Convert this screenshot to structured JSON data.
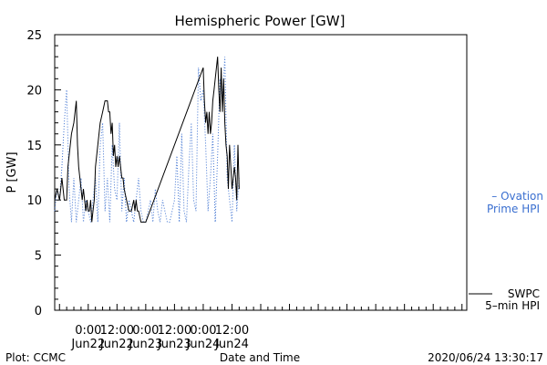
{
  "chart_data": {
    "type": "line",
    "title": "Hemispheric Power [GW]",
    "xlabel": "Date and Time",
    "ylabel": "P [GW]",
    "ylim": [
      0,
      25
    ],
    "xlim": [
      -14,
      158
    ],
    "x_unit": "hours from 2020/06/22 00:00 UT",
    "y_ticks": [
      0,
      5,
      10,
      15,
      20,
      25
    ],
    "x_tick_labels": [
      {
        "x": 0,
        "time": "0:00",
        "date": "Jun22"
      },
      {
        "x": 12,
        "time": "12:00",
        "date": "Jun22"
      },
      {
        "x": 24,
        "time": "0:00",
        "date": "Jun23"
      },
      {
        "x": 36,
        "time": "12:00",
        "date": "Jun23"
      },
      {
        "x": 48,
        "time": "0:00",
        "date": "Jun24"
      },
      {
        "x": 60,
        "time": "12:00",
        "date": "Jun24"
      }
    ],
    "grid": false,
    "legend": {
      "placement": "right",
      "entries": [
        {
          "series": "Ovation",
          "line1": "– Ovation",
          "line2": "Prime HPI",
          "color": "#3a6fd0"
        },
        {
          "series": "SWPC",
          "line1": "SWPC",
          "line2": "5–min HPI",
          "color": "#000000"
        }
      ]
    },
    "series": [
      {
        "name": "SWPC",
        "color": "#000000",
        "style": "solid",
        "x": [
          -14,
          -13,
          -12,
          -11.5,
          -11,
          -10.5,
          -10,
          -9,
          -8.5,
          -7,
          -6,
          -5,
          -4.5,
          -4,
          -3.5,
          -3,
          -2.5,
          -2,
          -1.5,
          -1,
          -0.5,
          0,
          0.5,
          1,
          1.5,
          2,
          2.5,
          3,
          4,
          5,
          6,
          7,
          8,
          8.5,
          9,
          9.5,
          10,
          10.5,
          11,
          11.5,
          12,
          12.5,
          13,
          13.5,
          14,
          14.5,
          15,
          16,
          17,
          18,
          19,
          19.5,
          20,
          20.5,
          21,
          22,
          23,
          24,
          48,
          48.5,
          49,
          49.5,
          50,
          50.5,
          51,
          51.5,
          52,
          52.5,
          53,
          53.5,
          54,
          54.5,
          55,
          55.5,
          56,
          56.5,
          57,
          57.5,
          58,
          58.5,
          59,
          59.5,
          60,
          60.5,
          61,
          61.5,
          62,
          62.5,
          63
        ],
        "y": [
          10,
          11,
          10,
          11,
          12,
          11,
          10,
          10,
          13,
          16,
          17,
          19,
          15,
          13,
          12,
          11,
          10,
          11,
          10,
          9,
          10,
          9,
          9,
          10,
          8,
          9,
          10,
          13,
          15,
          17,
          18,
          19,
          19,
          18,
          18,
          16,
          17,
          14,
          15,
          13,
          14,
          13,
          14,
          13,
          12,
          12,
          11,
          10,
          9,
          9,
          10,
          9,
          10,
          9,
          9,
          8,
          8,
          8,
          22,
          19,
          17,
          18,
          16,
          18,
          16,
          17,
          19,
          20,
          21,
          22,
          23,
          20,
          18,
          22,
          18,
          21,
          17,
          15,
          14,
          11,
          15,
          13,
          11,
          12,
          13,
          12,
          10,
          15,
          11
        ]
      },
      {
        "name": "Ovation",
        "color": "#3a6fd0",
        "style": "dotted",
        "x": [
          -14,
          -13,
          -12,
          -11,
          -10,
          -9,
          -8,
          -7,
          -6,
          -5,
          -4,
          -3,
          -2,
          -1,
          0,
          1,
          2,
          3,
          4,
          5,
          6,
          7,
          8,
          9,
          10,
          11,
          12,
          13,
          14,
          15,
          16,
          17,
          18,
          19,
          20,
          21,
          22,
          23,
          24,
          25,
          26,
          27,
          28,
          29,
          30,
          31,
          32,
          33,
          34,
          35,
          36,
          37,
          38,
          39,
          40,
          41,
          42,
          43,
          44,
          45,
          46,
          47,
          48,
          49,
          50,
          51,
          52,
          53,
          54,
          55,
          56,
          57,
          58,
          59,
          60,
          61,
          62,
          63
        ],
        "y": [
          9,
          11,
          10,
          13,
          17,
          20,
          11,
          8,
          12,
          8,
          10,
          12,
          8,
          10,
          9,
          8,
          10,
          12,
          8,
          15,
          17,
          9,
          12,
          8,
          15,
          11,
          10,
          17,
          9,
          12,
          8,
          10,
          9,
          8,
          10,
          12,
          9,
          8,
          8,
          9,
          10,
          8,
          11,
          9,
          8,
          10,
          9,
          8,
          8,
          9,
          10,
          14,
          8,
          16,
          9,
          8,
          13,
          17,
          10,
          9,
          22,
          19,
          20,
          15,
          9,
          12,
          16,
          8,
          14,
          21,
          19,
          23,
          12,
          10,
          8,
          15,
          9,
          12
        ]
      }
    ]
  },
  "footer": {
    "left": "Plot: CCMC",
    "center": "Date and Time",
    "right": "2020/06/24 13:30:17"
  }
}
